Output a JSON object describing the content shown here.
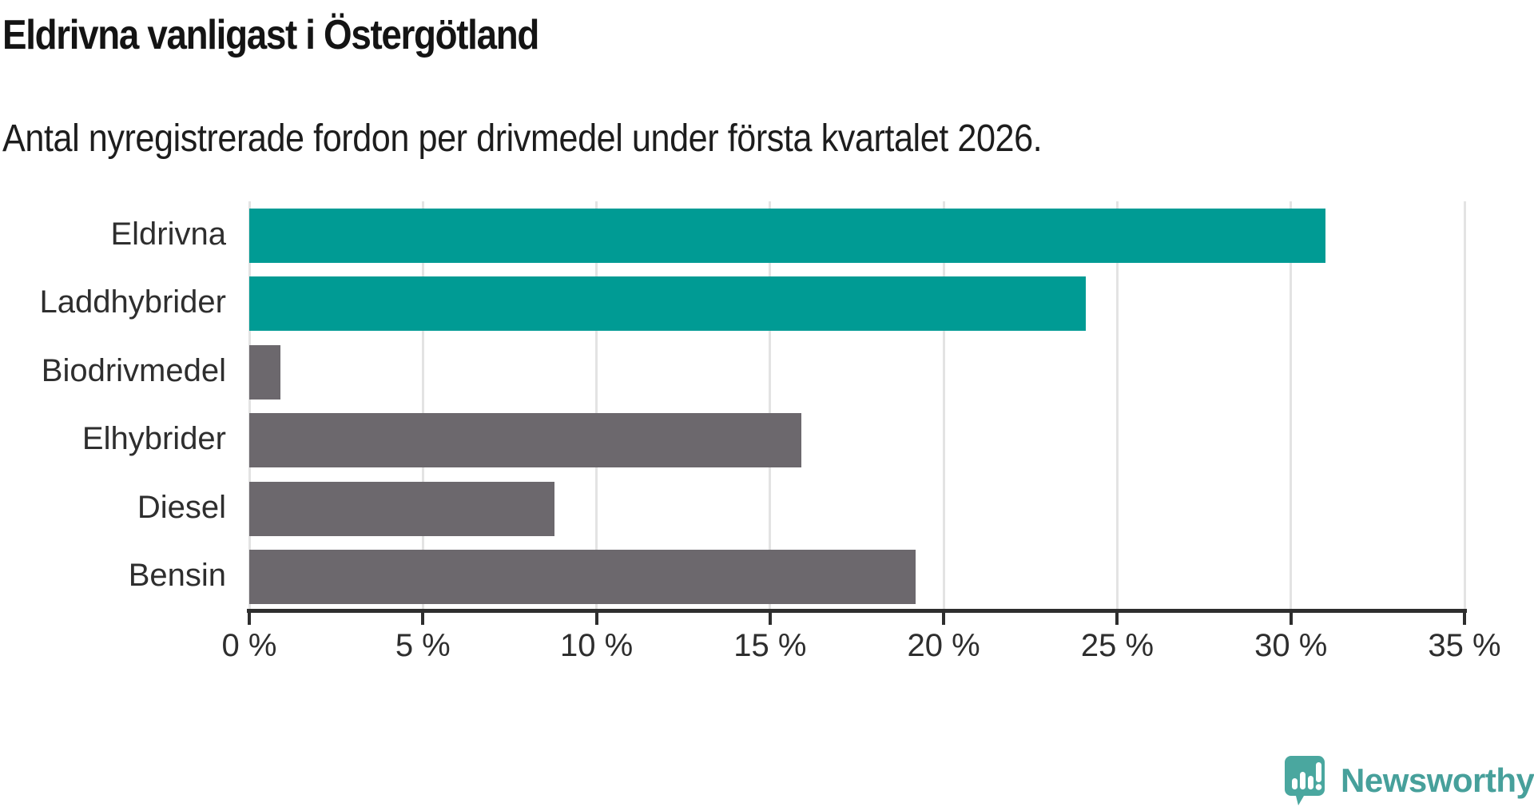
{
  "title": "Eldrivna vanligast i Östergötland",
  "subtitle": "Antal nyregistrerade fordon per drivmedel under första kvartalet 2026.",
  "chart_data": {
    "type": "bar",
    "orientation": "horizontal",
    "title": "Eldrivna vanligast i Östergötland",
    "subtitle": "Antal nyregistrerade fordon per drivmedel under första kvartalet 2026.",
    "categories": [
      "Eldrivna",
      "Laddhybrider",
      "Biodrivmedel",
      "Elhybrider",
      "Diesel",
      "Bensin"
    ],
    "values": [
      31.0,
      24.1,
      0.9,
      15.9,
      8.8,
      19.2
    ],
    "unit": "%",
    "colors": [
      "#009B94",
      "#009B94",
      "#6C686D",
      "#6C686D",
      "#6C686D",
      "#6C686D"
    ],
    "highlight_color": "#009B94",
    "default_color": "#6C686D",
    "xlim": [
      0,
      35
    ],
    "x_ticks": [
      0,
      5,
      10,
      15,
      20,
      25,
      30,
      35
    ],
    "x_tick_labels": [
      "0 %",
      "5 %",
      "10 %",
      "15 %",
      "20 %",
      "25 %",
      "30 %",
      "35 %"
    ],
    "grid": true,
    "gridline_color": "#E3E3E3",
    "legend": false
  },
  "branding": {
    "logo_text": "Newsworthy",
    "logo_color": "#47A09B",
    "logo_icon": "speech-bubble-bar-chart-icon",
    "icon_color": "#4AA79F"
  }
}
